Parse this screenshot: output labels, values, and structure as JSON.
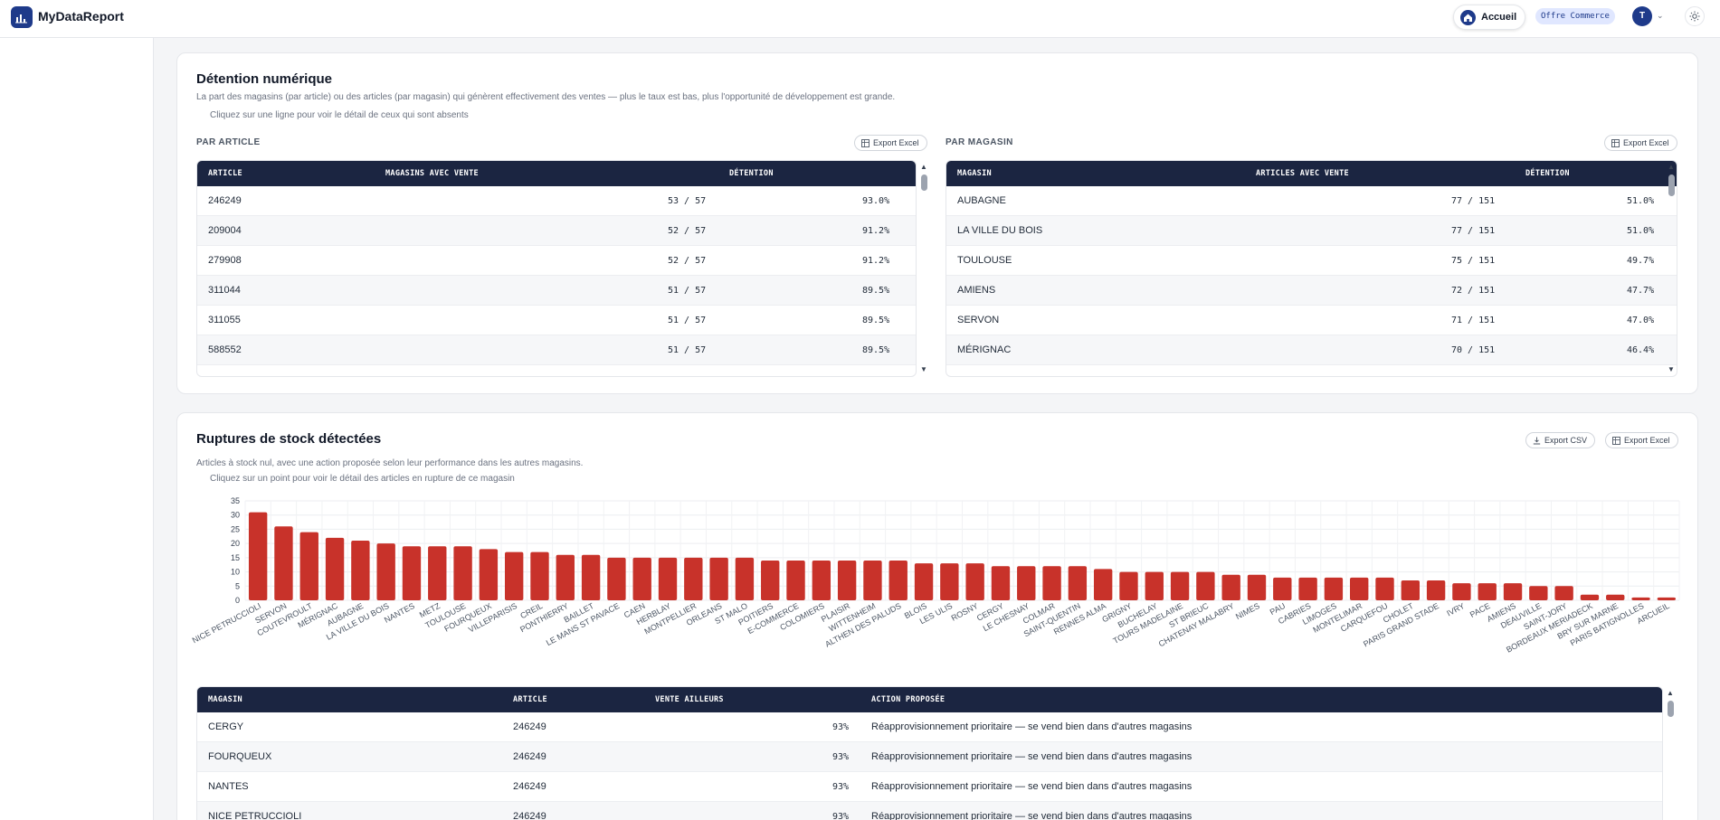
{
  "app": {
    "title": "MyDataReport"
  },
  "header": {
    "home_label": "Accueil",
    "offer_badge": "Offre Commerce",
    "avatar_initial": "T"
  },
  "detention": {
    "title": "Détention numérique",
    "subtitle": "La part des magasins (par article) ou des articles (par magasin) qui génèrent effectivement des ventes — plus le taux est bas, plus l'opportunité de développement est grande.",
    "hint": "Cliquez sur une ligne pour voir le détail de ceux qui sont absents",
    "by_article": {
      "label": "PAR ARTICLE",
      "export_label": "Export Excel",
      "columns": [
        "ARTICLE",
        "MAGASINS AVEC VENTE",
        "DÉTENTION"
      ],
      "rows": [
        [
          "246249",
          "53 / 57",
          "93.0%"
        ],
        [
          "209004",
          "52 / 57",
          "91.2%"
        ],
        [
          "279908",
          "52 / 57",
          "91.2%"
        ],
        [
          "311044",
          "51 / 57",
          "89.5%"
        ],
        [
          "311055",
          "51 / 57",
          "89.5%"
        ],
        [
          "588552",
          "51 / 57",
          "89.5%"
        ]
      ]
    },
    "by_store": {
      "label": "PAR MAGASIN",
      "export_label": "Export Excel",
      "columns": [
        "MAGASIN",
        "ARTICLES AVEC VENTE",
        "DÉTENTION"
      ],
      "rows": [
        [
          "AUBAGNE",
          "77 / 151",
          "51.0%"
        ],
        [
          "LA VILLE DU BOIS",
          "77 / 151",
          "51.0%"
        ],
        [
          "TOULOUSE",
          "75 / 151",
          "49.7%"
        ],
        [
          "AMIENS",
          "72 / 151",
          "47.7%"
        ],
        [
          "SERVON",
          "71 / 151",
          "47.0%"
        ],
        [
          "MÉRIGNAC",
          "70 / 151",
          "46.4%"
        ]
      ]
    }
  },
  "stockouts": {
    "title": "Ruptures de stock détectées",
    "subtitle": "Articles à stock nul, avec une action proposée selon leur performance dans les autres magasins.",
    "hint": "Cliquez sur un point pour voir le détail des articles en rupture de ce magasin",
    "export_csv_label": "Export CSV",
    "export_excel_label": "Export Excel",
    "table": {
      "columns": [
        "MAGASIN",
        "ARTICLE",
        "VENTE AILLEURS",
        "ACTION PROPOSÉE"
      ],
      "rows": [
        [
          "CERGY",
          "246249",
          "93%",
          "Réapprovisionnement prioritaire — se vend bien dans d'autres magasins"
        ],
        [
          "FOURQUEUX",
          "246249",
          "93%",
          "Réapprovisionnement prioritaire — se vend bien dans d'autres magasins"
        ],
        [
          "NANTES",
          "246249",
          "93%",
          "Réapprovisionnement prioritaire — se vend bien dans d'autres magasins"
        ],
        [
          "NICE PETRUCCIOLI",
          "246249",
          "93%",
          "Réapprovisionnement prioritaire — se vend bien dans d'autres magasins"
        ]
      ]
    }
  },
  "chart_data": {
    "type": "bar",
    "title": "",
    "xlabel": "",
    "ylabel": "",
    "ylim": [
      0,
      35
    ],
    "yticks": [
      0,
      5,
      10,
      15,
      20,
      25,
      30,
      35
    ],
    "grid": true,
    "bar_color": "#c8322a",
    "categories": [
      "NICE PETRUCCIOLI",
      "SERVON",
      "COUTEVROULT",
      "MÉRIGNAC",
      "AUBAGNE",
      "LA VILLE DU BOIS",
      "NANTES",
      "METZ",
      "TOULOUSE",
      "FOURQUEUX",
      "VILLEPARISIS",
      "CREIL",
      "PONTHIERRY",
      "BAILLET",
      "LE MANS ST PAVACE",
      "CAEN",
      "HERBLAY",
      "MONTPELLIER",
      "ORLEANS",
      "ST MALO",
      "POITIERS",
      "E-COMMERCE",
      "COLOMIERS",
      "PLAISIR",
      "WITTENHEIM",
      "ALTHEN DES PALUDS",
      "BLOIS",
      "LES ULIS",
      "ROSNY",
      "CERGY",
      "LE CHESNAY",
      "COLMAR",
      "SAINT-QUENTIN",
      "RENNES ALMA",
      "GRIGNY",
      "BUCHELAY",
      "TOURS MADELAINE",
      "ST BRIEUC",
      "CHATENAY MALABRY",
      "NIMES",
      "PAU",
      "CABRIES",
      "LIMOGES",
      "MONTELIMAR",
      "CARQUEFOU",
      "CHOLET",
      "PARIS GRAND STADE",
      "IVRY",
      "PACE",
      "AMIENS",
      "DEAUVILLE",
      "SAINT-JORY",
      "BORDEAUX MERIADECK",
      "BRY SUR MARNE",
      "PARIS BATIGNOLLES",
      "ARCUEIL"
    ],
    "values": [
      31,
      26,
      24,
      22,
      21,
      20,
      19,
      19,
      19,
      18,
      17,
      17,
      16,
      16,
      15,
      15,
      15,
      15,
      15,
      15,
      14,
      14,
      14,
      14,
      14,
      14,
      13,
      13,
      13,
      12,
      12,
      12,
      12,
      11,
      10,
      10,
      10,
      10,
      9,
      9,
      8,
      8,
      8,
      8,
      8,
      7,
      7,
      6,
      6,
      6,
      5,
      5,
      2,
      2,
      1,
      1
    ]
  }
}
